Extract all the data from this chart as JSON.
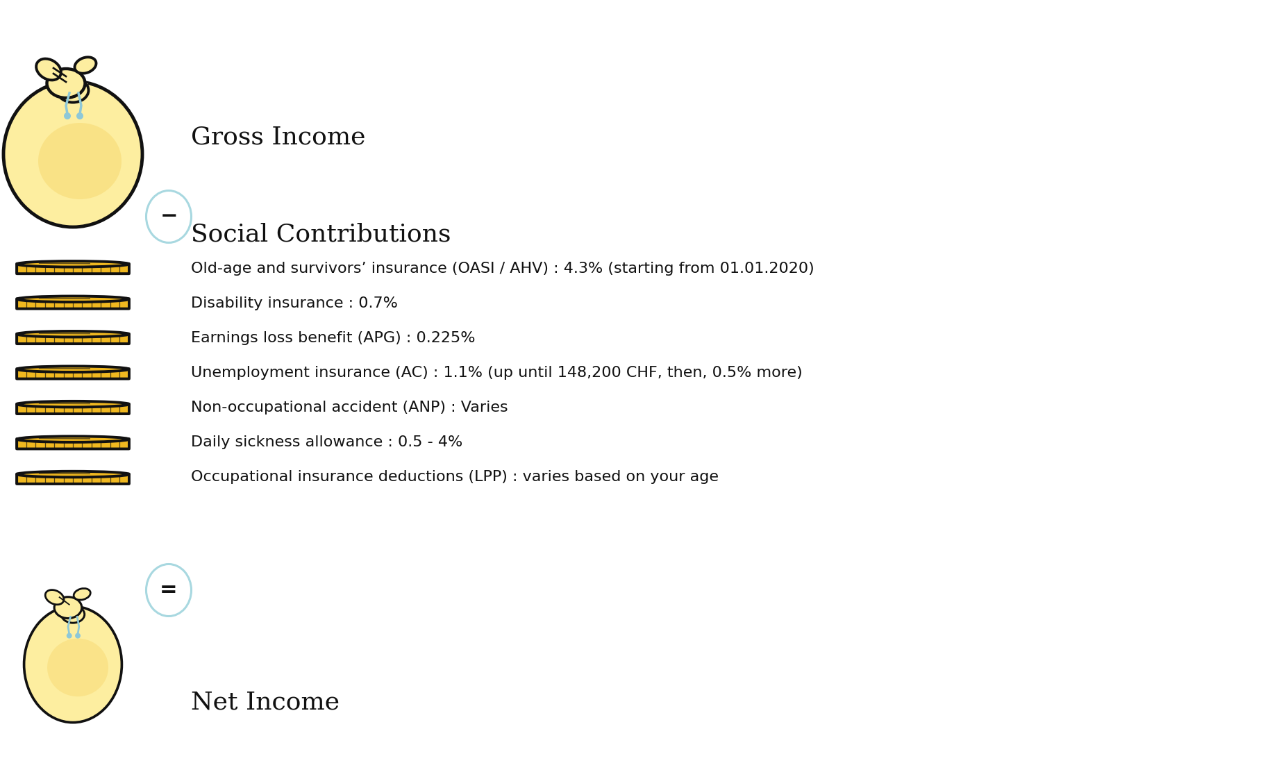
{
  "background_color": "#ffffff",
  "title_gross": "Gross Income",
  "title_social": "Social Contributions",
  "title_net": "Net Income",
  "minus_symbol": "−",
  "equals_symbol": "=",
  "contributions": [
    "Old-age and survivors’ insurance (OASI / AHV) : 4.3% (starting from 01.01.2020)",
    "Disability insurance : 0.7%",
    "Earnings loss benefit (APG) : 0.225%",
    "Unemployment insurance (AC) : 1.1% (up until 148,200 CHF, then, 0.5% more)",
    "Non-occupational accident (ANP) : Varies",
    "Daily sickness allowance : 0.5 - 4%",
    "Occupational insurance deductions (LPP) : varies based on your age"
  ],
  "bag_fill_light": "#fdeea0",
  "bag_fill_dark": "#f5d060",
  "bag_outline_color": "#111111",
  "coin_fill_color": "#f0b820",
  "coin_outline_color": "#111111",
  "circle_border": "#a8d8e0",
  "text_color": "#111111",
  "title_fontsize": 26,
  "body_fontsize": 16,
  "symbol_fontsize": 22,
  "drop_color": "#8ec8d8"
}
